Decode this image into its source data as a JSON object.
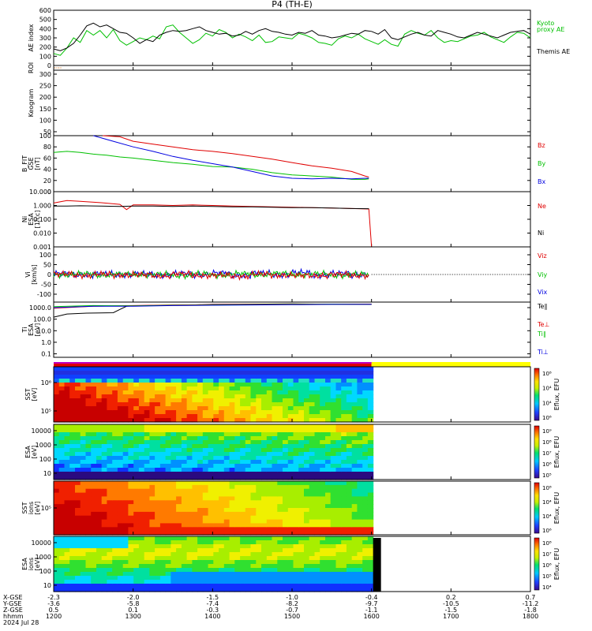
{
  "title": "P4 (TH-E)",
  "footer": {
    "row_labels": [
      "X-GSE",
      "Y-GSE",
      "Z-GSE",
      "hhmm",
      "2024 Jul 28"
    ],
    "ticks": [
      {
        "x": [
          "-2.3",
          "-3.6",
          "0.5"
        ],
        "t": "1200"
      },
      {
        "x": [
          "-2.0",
          "-5.8",
          "0.1"
        ],
        "t": "1300"
      },
      {
        "x": [
          "-1.5",
          "-7.4",
          "-0.3"
        ],
        "t": "1400"
      },
      {
        "x": [
          "-1.0",
          "-8.2",
          "-0.7"
        ],
        "t": "1500"
      },
      {
        "x": [
          "-0.4",
          "-9.7",
          "-1.1"
        ],
        "t": "1600"
      },
      {
        "x": [
          "0.2",
          "-10.5",
          "-1.5"
        ],
        "t": "1700"
      },
      {
        "x": [
          "0.7",
          "-11.2",
          "-1.8"
        ],
        "t": "1800"
      }
    ]
  },
  "colors": {
    "red": "#e00000",
    "green": "#00c000",
    "blue": "#0000e0",
    "black": "#000000",
    "yellow": "#ffff00"
  },
  "chart_data": [
    {
      "type": "line",
      "panel": "ae",
      "ylabel": "AE index",
      "ylim": [
        0,
        600
      ],
      "yticks": [
        "600",
        "500",
        "400",
        "300",
        "200",
        "100",
        "0"
      ],
      "series": [
        {
          "name": "Kyoto proxy AE",
          "color": "green",
          "x": [
            1200,
            1205,
            1210,
            1215,
            1220,
            1225,
            1230,
            1235,
            1240,
            1245,
            1250,
            1255,
            1300,
            1305,
            1310,
            1315,
            1320,
            1325,
            1330,
            1335,
            1340,
            1345,
            1350,
            1355,
            1400,
            1405,
            1410,
            1415,
            1420,
            1425,
            1430,
            1435,
            1440,
            1445,
            1450,
            1455,
            1500,
            1505,
            1510,
            1515,
            1520,
            1525,
            1530,
            1535,
            1540,
            1545,
            1550,
            1555,
            1600,
            1605,
            1610,
            1615,
            1620,
            1625,
            1630,
            1635,
            1640,
            1645,
            1650,
            1655,
            1700,
            1705,
            1710,
            1715,
            1720,
            1725,
            1730,
            1735,
            1740,
            1745,
            1750,
            1755,
            1800
          ],
          "y": [
            130,
            110,
            190,
            300,
            250,
            380,
            330,
            380,
            300,
            390,
            270,
            220,
            260,
            300,
            280,
            320,
            290,
            420,
            440,
            360,
            300,
            240,
            280,
            350,
            320,
            390,
            360,
            300,
            340,
            310,
            270,
            330,
            250,
            260,
            310,
            300,
            290,
            350,
            330,
            300,
            250,
            240,
            220,
            290,
            320,
            300,
            340,
            290,
            260,
            230,
            280,
            230,
            210,
            340,
            380,
            350,
            330,
            380,
            300,
            250,
            270,
            260,
            290,
            320,
            330,
            360,
            310,
            280,
            250,
            310,
            360,
            350,
            300
          ]
        },
        {
          "name": "Themis AE",
          "color": "black",
          "x": [
            1200,
            1205,
            1210,
            1215,
            1220,
            1225,
            1230,
            1235,
            1240,
            1245,
            1250,
            1255,
            1300,
            1305,
            1310,
            1315,
            1320,
            1325,
            1330,
            1335,
            1340,
            1345,
            1350,
            1355,
            1400,
            1405,
            1410,
            1415,
            1420,
            1425,
            1430,
            1435,
            1440,
            1445,
            1450,
            1455,
            1500,
            1505,
            1510,
            1515,
            1520,
            1525,
            1530,
            1535,
            1540,
            1545,
            1550,
            1555,
            1600,
            1605,
            1610,
            1615,
            1620,
            1625,
            1630,
            1635,
            1640,
            1645,
            1650,
            1655,
            1700,
            1705,
            1710,
            1715,
            1720,
            1725,
            1730,
            1735,
            1740,
            1745,
            1750,
            1755,
            1800
          ],
          "y": [
            180,
            160,
            190,
            240,
            330,
            430,
            460,
            420,
            440,
            400,
            360,
            350,
            300,
            240,
            280,
            260,
            330,
            360,
            380,
            370,
            380,
            400,
            420,
            380,
            360,
            340,
            350,
            320,
            330,
            370,
            340,
            380,
            400,
            370,
            360,
            340,
            330,
            360,
            350,
            380,
            330,
            320,
            300,
            310,
            330,
            350,
            340,
            380,
            370,
            340,
            390,
            300,
            280,
            310,
            340,
            360,
            330,
            320,
            380,
            360,
            340,
            310,
            300,
            330,
            360,
            340,
            320,
            300,
            330,
            360,
            370,
            380,
            340
          ]
        }
      ],
      "legend": [
        "Kyoto",
        "proxy AE",
        "Themis AE"
      ]
    },
    {
      "type": "line",
      "panel": "roi",
      "ylabel": "ROI",
      "series": []
    },
    {
      "type": "heatmap",
      "panel": "keogram",
      "ylabel": "Keogram",
      "ylim": [
        50,
        300
      ],
      "yticks": [
        "300",
        "250",
        "200",
        "150",
        "100",
        "50"
      ]
    },
    {
      "type": "line",
      "panel": "bfit",
      "ylabel": [
        "B_FIT",
        "GSE",
        "[nT]"
      ],
      "ylim": [
        0,
        100
      ],
      "yticks": [
        "100",
        "80",
        "60",
        "40",
        "20",
        "0"
      ],
      "series": [
        {
          "name": "Bz",
          "color": "red",
          "x": [
            1237,
            1250,
            1300,
            1315,
            1330,
            1345,
            1400,
            1415,
            1430,
            1445,
            1500,
            1515,
            1530,
            1545,
            1555,
            1558
          ],
          "y": [
            100,
            98,
            90,
            85,
            80,
            75,
            72,
            68,
            63,
            58,
            52,
            46,
            42,
            36,
            28,
            26
          ]
        },
        {
          "name": "By",
          "color": "green",
          "x": [
            1200,
            1210,
            1220,
            1230,
            1240,
            1250,
            1300,
            1315,
            1330,
            1345,
            1400,
            1415,
            1430,
            1445,
            1500,
            1515,
            1530,
            1545,
            1555,
            1558
          ],
          "y": [
            70,
            72,
            70,
            67,
            65,
            62,
            60,
            56,
            52,
            49,
            45,
            44,
            40,
            34,
            30,
            28,
            26,
            22,
            22,
            23
          ]
        },
        {
          "name": "Bx",
          "color": "blue",
          "x": [
            1230,
            1245,
            1300,
            1315,
            1330,
            1345,
            1400,
            1415,
            1430,
            1445,
            1500,
            1515,
            1530,
            1545,
            1555,
            1558
          ],
          "y": [
            100,
            90,
            80,
            72,
            63,
            56,
            50,
            44,
            36,
            28,
            24,
            23,
            24,
            23,
            24,
            24
          ]
        }
      ],
      "legend": [
        "Bz",
        "By",
        "Bx"
      ]
    },
    {
      "type": "line",
      "panel": "ni",
      "ylabel": [
        "Ni",
        "ESA",
        "[1/cc]"
      ],
      "scale": "log",
      "ylim": [
        0.001,
        10
      ],
      "yticks": [
        "10.000",
        "1.000",
        "0.100",
        "0.010",
        "0.001"
      ],
      "series": [
        {
          "name": "Ne",
          "color": "red",
          "x": [
            1200,
            1210,
            1220,
            1235,
            1250,
            1255,
            1300,
            1315,
            1330,
            1345,
            1400,
            1415,
            1430,
            1445,
            1500,
            1515,
            1530,
            1545,
            1558,
            1600
          ],
          "y": [
            1.5,
            2.3,
            2.0,
            1.6,
            1.2,
            0.5,
            1.1,
            1.1,
            1.0,
            1.1,
            1.0,
            0.9,
            0.85,
            0.8,
            0.75,
            0.7,
            0.65,
            0.6,
            0.55,
            0.001
          ]
        },
        {
          "name": "Ni",
          "color": "black",
          "x": [
            1200,
            1210,
            1220,
            1235,
            1250,
            1300,
            1315,
            1330,
            1345,
            1400,
            1415,
            1430,
            1445,
            1500,
            1515,
            1530,
            1545,
            1558
          ],
          "y": [
            0.9,
            0.9,
            0.95,
            0.9,
            0.85,
            0.9,
            0.9,
            0.85,
            0.9,
            0.85,
            0.8,
            0.8,
            0.75,
            0.7,
            0.7,
            0.65,
            0.6,
            0.58
          ]
        }
      ],
      "legend": [
        "Ne",
        "Ni"
      ]
    },
    {
      "type": "line",
      "panel": "vi",
      "ylabel": [
        "Vi",
        "[km/s]"
      ],
      "ylim": [
        -130,
        130
      ],
      "yticks": [
        "100",
        "50",
        "0",
        "-50",
        "-100"
      ],
      "series": [
        {
          "name": "Vix",
          "color": "blue",
          "x": [
            1200,
            1215,
            1230,
            1245,
            1300,
            1315,
            1330,
            1345,
            1400,
            1415,
            1430,
            1445,
            1500,
            1515,
            1530,
            1545,
            1558
          ],
          "y": [
            5,
            -3,
            4,
            -2,
            3,
            -4,
            5,
            -3,
            8,
            -6,
            7,
            -2,
            10,
            -5,
            6,
            -4,
            3
          ]
        },
        {
          "name": "Viy",
          "color": "green",
          "x": [
            1200,
            1215,
            1230,
            1245,
            1300,
            1315,
            1330,
            1345,
            1400,
            1415,
            1430,
            1445,
            1500,
            1515,
            1530,
            1545,
            1558
          ],
          "y": [
            -2,
            4,
            -5,
            3,
            -3,
            2,
            -6,
            4,
            -4,
            5,
            -3,
            6,
            -2,
            4,
            -5,
            2,
            -1
          ]
        },
        {
          "name": "Viz",
          "color": "red",
          "x": [
            1200,
            1215,
            1230,
            1245,
            1300,
            1315,
            1330,
            1345,
            1400,
            1415,
            1430,
            1445,
            1500,
            1515,
            1530,
            1545,
            1558
          ],
          "y": [
            3,
            -5,
            2,
            -4,
            0,
            -8,
            4,
            -6,
            -2,
            -9,
            3,
            -5,
            -3,
            -7,
            2,
            -6,
            -4
          ]
        }
      ],
      "legend": [
        "Viz",
        "Viy",
        "Vix"
      ]
    },
    {
      "type": "line",
      "panel": "ti",
      "ylabel": [
        "Ti",
        "ESA",
        "[eV]"
      ],
      "scale": "log",
      "ylim": [
        0.05,
        3000
      ],
      "yticks": [
        "1000.0",
        "100.0",
        "10.0",
        "1.0",
        "0.1"
      ],
      "series": [
        {
          "name": "Te∥",
          "color": "black",
          "x": [
            1200,
            1210,
            1225,
            1245,
            1250,
            1255,
            1300,
            1320,
            1345,
            1400,
            1430,
            1500,
            1530,
            1600
          ],
          "y": [
            150,
            280,
            330,
            360,
            700,
            1300,
            1400,
            1600,
            1700,
            1900,
            2000,
            2100,
            2000,
            2000
          ]
        },
        {
          "name": "Te⊥",
          "color": "red",
          "x": [
            1200,
            1230,
            1300,
            1330,
            1400,
            1430,
            1500,
            1530,
            1600
          ],
          "y": [
            900,
            1300,
            1500,
            1700,
            1800,
            1900,
            2000,
            2000,
            2000
          ]
        },
        {
          "name": "Ti∥",
          "color": "green",
          "x": [
            1200,
            1230,
            1300,
            1330,
            1400,
            1430,
            1500,
            1530,
            1600
          ],
          "y": [
            1200,
            1500,
            1400,
            1600,
            1700,
            1800,
            1900,
            2000,
            1900
          ]
        },
        {
          "name": "Ti⊥",
          "color": "blue",
          "x": [
            1200,
            1230,
            1300,
            1330,
            1400,
            1430,
            1500,
            1530,
            1600
          ],
          "y": [
            1000,
            1300,
            1300,
            1500,
            1600,
            1700,
            1800,
            1900,
            1900
          ]
        }
      ],
      "legend": [
        "Te∥",
        "Te⊥",
        "Ti∥",
        "Ti⊥"
      ]
    },
    {
      "type": "heatmap",
      "panel": "sst_e",
      "ylabel": [
        "SST",
        "[eV]"
      ],
      "yticks": [
        "10⁶",
        "10⁵"
      ],
      "colorbar": [
        "10⁸",
        "10⁴",
        "10⁴",
        "10⁶"
      ],
      "colorbar_label": "Eflux, EFU"
    },
    {
      "type": "heatmap",
      "panel": "esa_e",
      "ylabel": [
        "ESA",
        "[eV]"
      ],
      "yticks": [
        "10000",
        "1000",
        "100",
        "10"
      ],
      "colorbar": [
        "10⁹",
        "10⁸",
        "10⁷",
        "10⁶",
        "10⁵"
      ],
      "colorbar_label": "Eflux, EFU"
    },
    {
      "type": "heatmap",
      "panel": "sst_i",
      "ylabel": [
        "SST",
        "ions",
        "[eV]"
      ],
      "yticks": [
        "10⁵"
      ],
      "colorbar": [
        "10⁸",
        "10⁴",
        "10⁴",
        "10⁶"
      ],
      "colorbar_label": "Eflux, EFU"
    },
    {
      "type": "heatmap",
      "panel": "esa_i",
      "ylabel": [
        "ESA",
        "ions",
        "[eV]"
      ],
      "yticks": [
        "10000",
        "1000",
        "100",
        "10"
      ],
      "colorbar": [
        "10⁸",
        "10⁷",
        "10⁶",
        "10⁵",
        "10⁴"
      ],
      "colorbar_label": "Eflux, EFU"
    }
  ]
}
